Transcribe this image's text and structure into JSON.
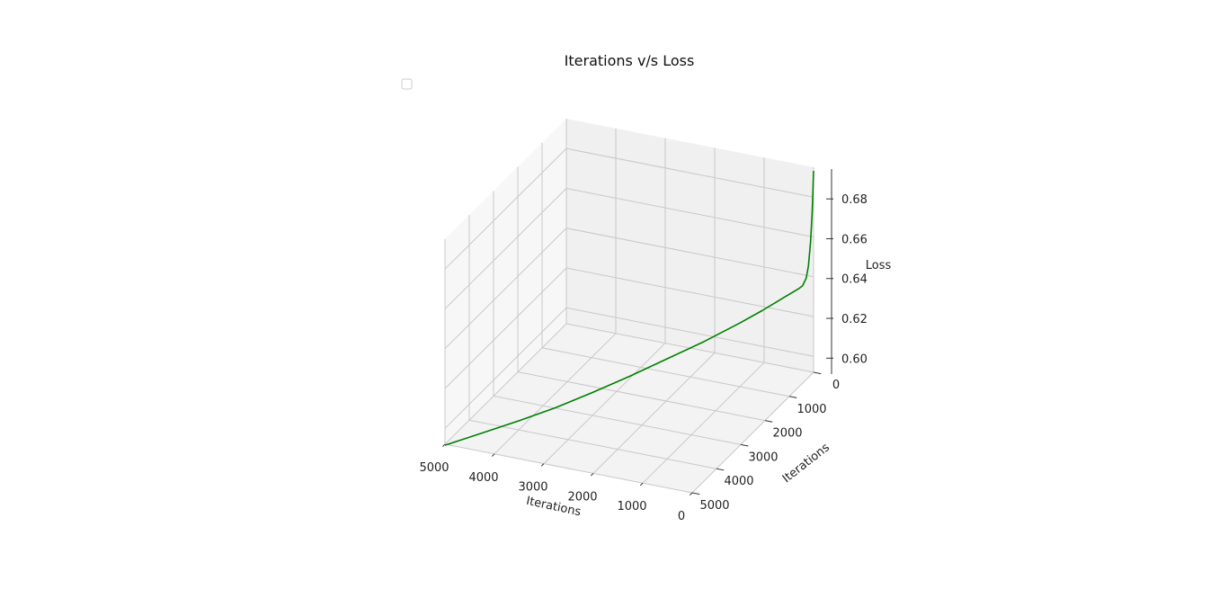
{
  "chart_data": {
    "type": "line",
    "projection": "3d",
    "title": "Iterations v/s Loss",
    "xlabel": "Iterations",
    "ylabel": "Iterations",
    "zlabel": "Loss",
    "xlim": [
      0,
      5000
    ],
    "ylim": [
      0,
      5000
    ],
    "zlim": [
      0.592,
      0.695
    ],
    "x_ticks": [
      "0",
      "1000",
      "2000",
      "3000",
      "4000",
      "5000"
    ],
    "y_ticks": [
      "0",
      "1000",
      "2000",
      "3000",
      "4000",
      "5000"
    ],
    "z_ticks": [
      "0.60",
      "0.62",
      "0.64",
      "0.66",
      "0.68"
    ],
    "grid": true,
    "legend": {
      "location": "upper-left",
      "entries": []
    },
    "series": [
      {
        "color": "#008000",
        "x": [
          0,
          10,
          20,
          40,
          70,
          100,
          150,
          200,
          300,
          400,
          500,
          700,
          1000,
          1500,
          2000,
          2500,
          3000,
          3500,
          4000,
          4500,
          5000
        ],
        "y": [
          0,
          10,
          20,
          40,
          70,
          100,
          150,
          200,
          300,
          400,
          500,
          700,
          1000,
          1500,
          2000,
          2500,
          3000,
          3500,
          4000,
          4500,
          5000
        ],
        "z": [
          0.6932,
          0.682,
          0.672,
          0.658,
          0.646,
          0.64,
          0.6365,
          0.6355,
          0.634,
          0.6325,
          0.631,
          0.628,
          0.624,
          0.618,
          0.613,
          0.608,
          0.6035,
          0.5995,
          0.5965,
          0.594,
          0.5915
        ]
      }
    ]
  }
}
